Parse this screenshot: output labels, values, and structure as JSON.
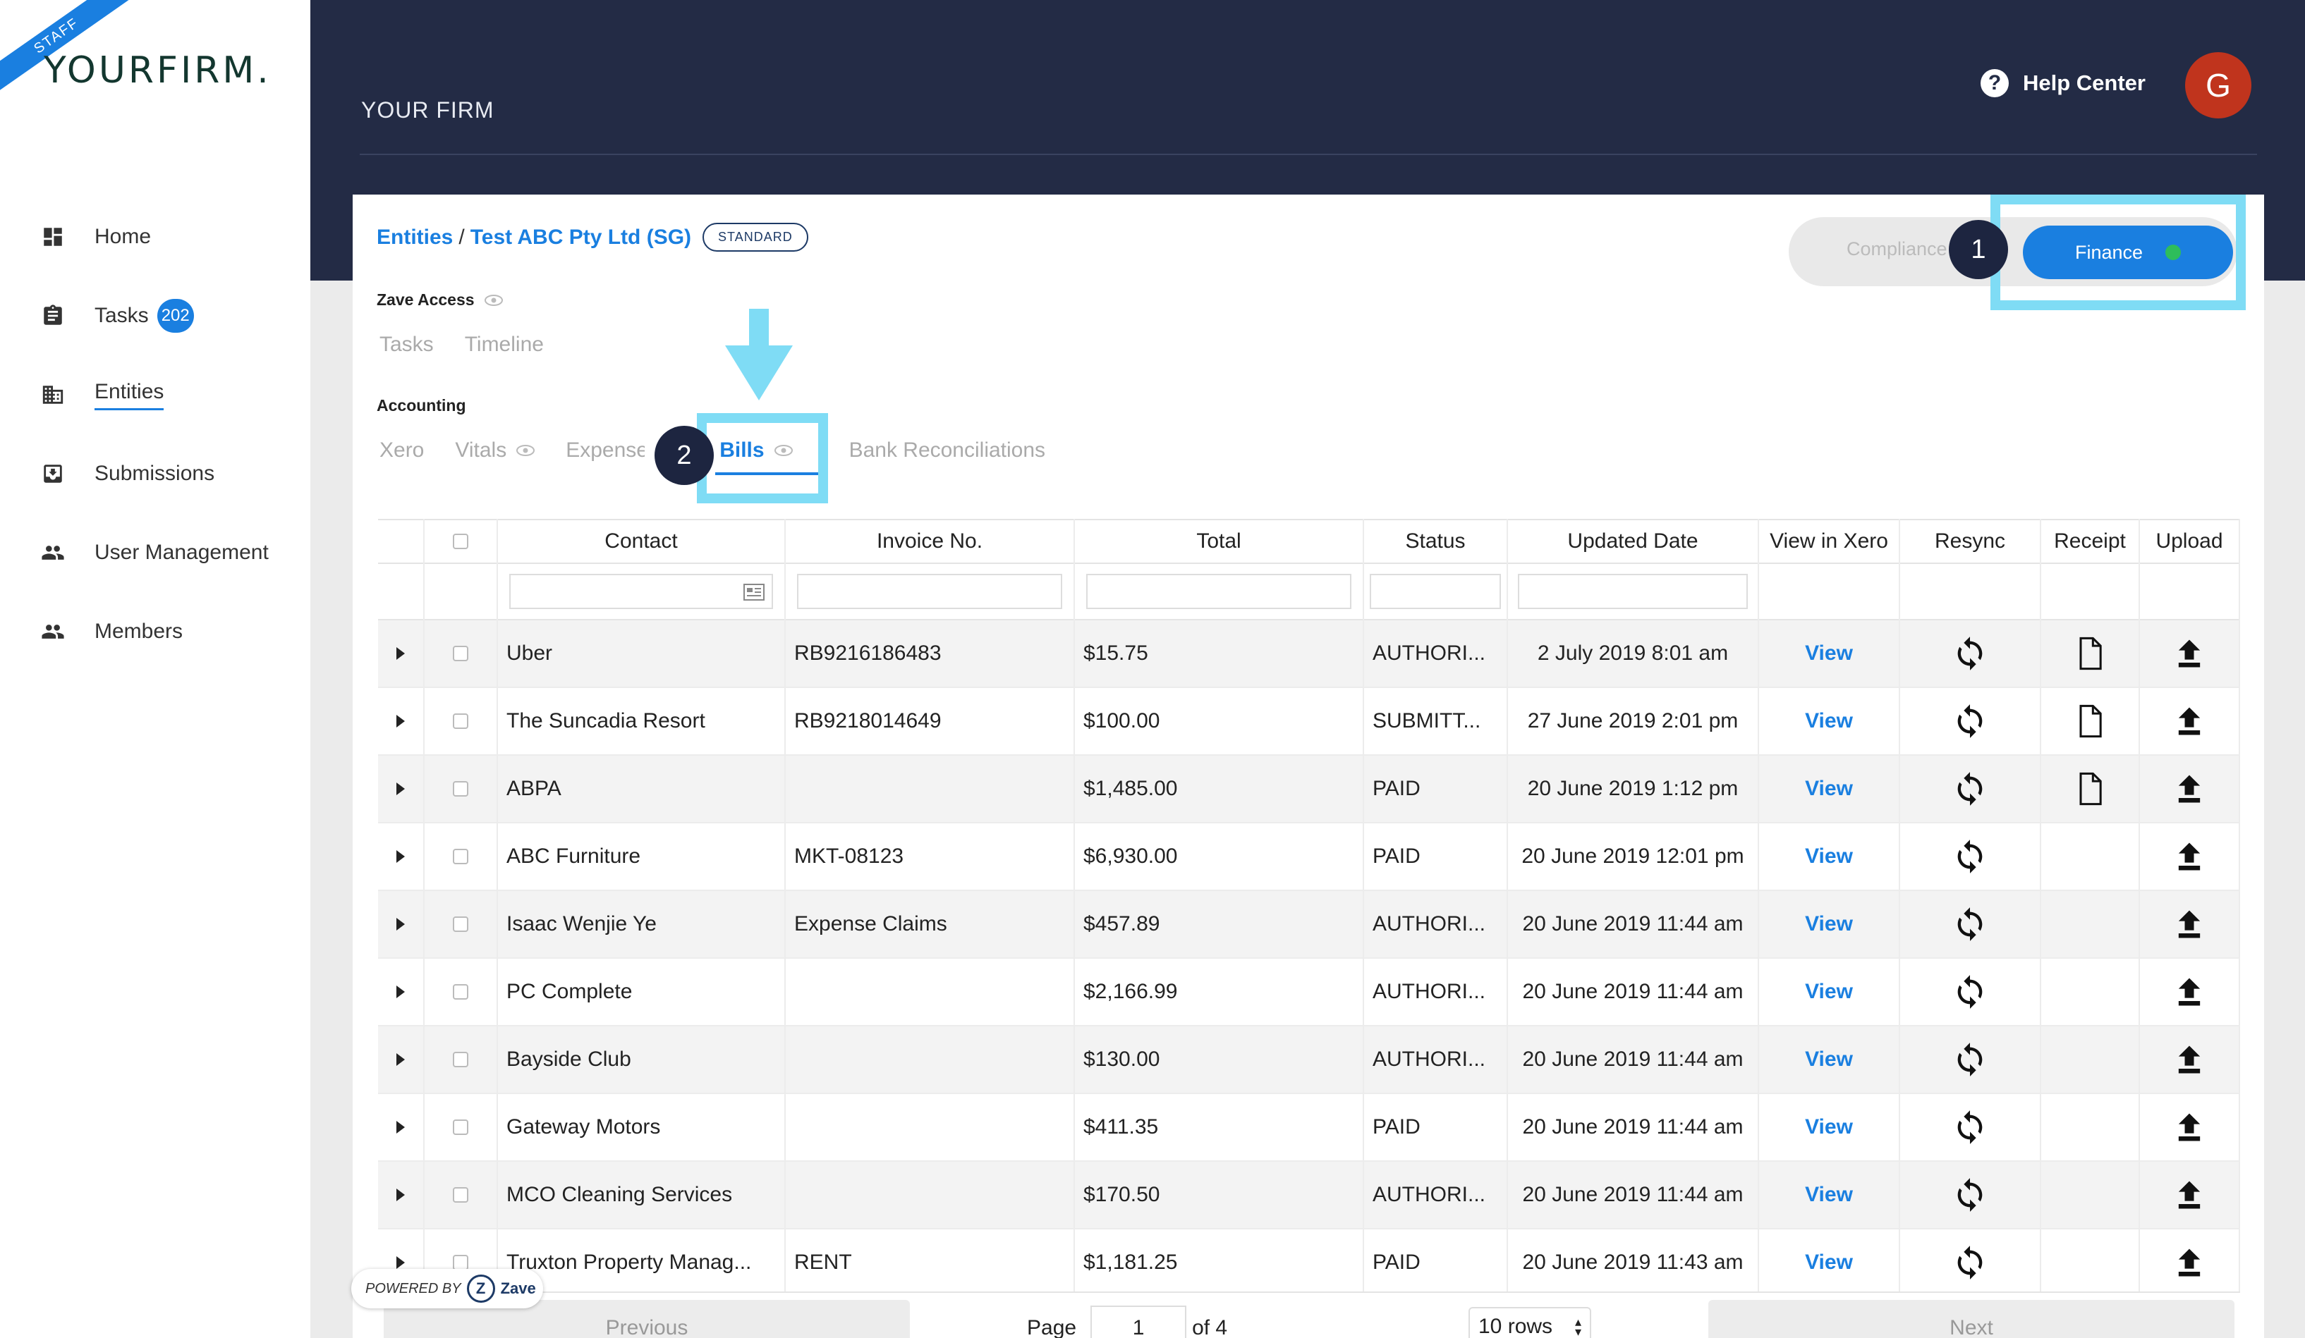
{
  "sidebar": {
    "ribbon": "STAFF",
    "logo": "YOURFIRM.",
    "items": [
      {
        "label": "Home",
        "icon": "dashboard-icon"
      },
      {
        "label": "Tasks",
        "icon": "clipboard-icon",
        "badge": "202"
      },
      {
        "label": "Entities",
        "icon": "building-icon",
        "active": true
      },
      {
        "label": "Submissions",
        "icon": "inbox-icon"
      },
      {
        "label": "User Management",
        "icon": "people-icon"
      },
      {
        "label": "Members",
        "icon": "people-icon"
      }
    ]
  },
  "header": {
    "firm_name": "YOUR FIRM",
    "help_label": "Help Center",
    "avatar_initial": "G",
    "colors": {
      "header_bg": "#232b45",
      "avatar": "#c0341d",
      "accent": "#1a7fe0",
      "highlight": "#7fdcf5"
    }
  },
  "breadcrumb": {
    "root": "Entities",
    "separator": "/",
    "entity": "Test ABC Pty Ltd (SG)",
    "plan_badge": "STANDARD"
  },
  "mode_toggle": {
    "compliance_label": "Compliance",
    "finance_label": "Finance",
    "selected": "Finance",
    "status_color": "#2ebd5b"
  },
  "steps": {
    "one": "1",
    "two": "2"
  },
  "zave_access": {
    "label": "Zave Access",
    "tabs": [
      "Tasks",
      "Timeline"
    ]
  },
  "accounting": {
    "label": "Accounting",
    "tabs": [
      "Xero",
      "Vitals",
      "Expenses",
      "Bills",
      "Bank Reconciliations"
    ],
    "active_tab": "Bills"
  },
  "table": {
    "columns": [
      "Contact",
      "Invoice No.",
      "Total",
      "Status",
      "Updated Date",
      "View in Xero",
      "Resync",
      "Receipt",
      "Upload"
    ],
    "view_label": "View",
    "rows": [
      {
        "contact": "Uber",
        "invoice": "RB9216186483",
        "total": "$15.75",
        "status": "AUTHORI...",
        "date": "2 July 2019 8:01 am",
        "receipt": true
      },
      {
        "contact": "The Suncadia Resort",
        "invoice": "RB9218014649",
        "total": "$100.00",
        "status": "SUBMITT...",
        "date": "27 June 2019 2:01 pm",
        "receipt": true
      },
      {
        "contact": "ABPA",
        "invoice": "",
        "total": "$1,485.00",
        "status": "PAID",
        "date": "20 June 2019 1:12 pm",
        "receipt": true
      },
      {
        "contact": "ABC Furniture",
        "invoice": "MKT-08123",
        "total": "$6,930.00",
        "status": "PAID",
        "date": "20 June 2019 12:01 pm",
        "receipt": false
      },
      {
        "contact": "Isaac Wenjie Ye",
        "invoice": "Expense Claims",
        "total": "$457.89",
        "status": "AUTHORI...",
        "date": "20 June 2019 11:44 am",
        "receipt": false
      },
      {
        "contact": "PC Complete",
        "invoice": "",
        "total": "$2,166.99",
        "status": "AUTHORI...",
        "date": "20 June 2019 11:44 am",
        "receipt": false
      },
      {
        "contact": "Bayside Club",
        "invoice": "",
        "total": "$130.00",
        "status": "AUTHORI...",
        "date": "20 June 2019 11:44 am",
        "receipt": false
      },
      {
        "contact": "Gateway Motors",
        "invoice": "",
        "total": "$411.35",
        "status": "PAID",
        "date": "20 June 2019 11:44 am",
        "receipt": false
      },
      {
        "contact": "MCO Cleaning Services",
        "invoice": "",
        "total": "$170.50",
        "status": "AUTHORI...",
        "date": "20 June 2019 11:44 am",
        "receipt": false
      },
      {
        "contact": "Truxton Property Manag...",
        "invoice": "RENT",
        "total": "$1,181.25",
        "status": "PAID",
        "date": "20 June 2019 11:43 am",
        "receipt": false
      }
    ]
  },
  "pagination": {
    "previous": "Previous",
    "page_label": "Page",
    "page": "1",
    "of_label": "of 4",
    "rows_option": "10 rows",
    "next": "Next"
  },
  "powered_by": {
    "label": "POWERED BY",
    "brand": "Zave",
    "mark": "Z"
  }
}
